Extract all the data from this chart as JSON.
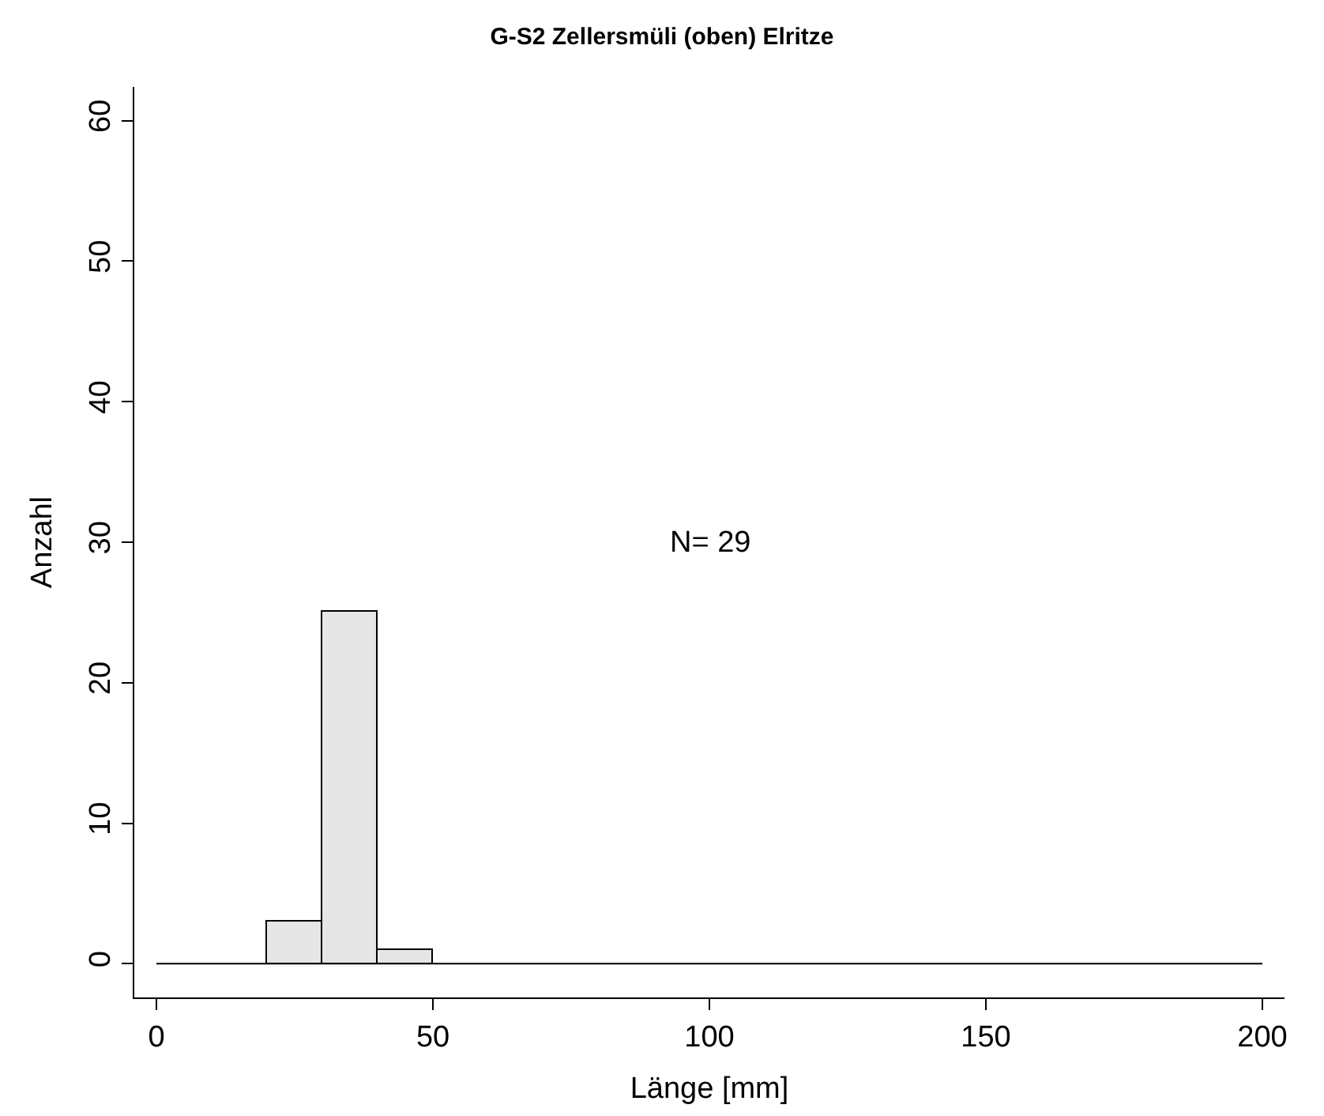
{
  "chart_data": {
    "type": "histogram",
    "title": "G-S2 Zellersmüli (oben) Elritze",
    "xlabel": "Länge [mm]",
    "ylabel": "Anzahl",
    "bins": [
      20,
      30,
      40,
      50
    ],
    "values": [
      3,
      25,
      1
    ],
    "ref_lines": [
      {
        "axis": "y",
        "value": 0,
        "color": "#000000"
      }
    ],
    "color": "#e6e6e6",
    "xlim": [
      -4,
      204
    ],
    "xticks": [
      0,
      50,
      100,
      150,
      200
    ],
    "ylim": [
      -2.4,
      62.4
    ],
    "yticks": [
      0,
      10,
      20,
      30,
      40,
      50,
      60
    ],
    "annotations": [
      "N= 29"
    ]
  }
}
